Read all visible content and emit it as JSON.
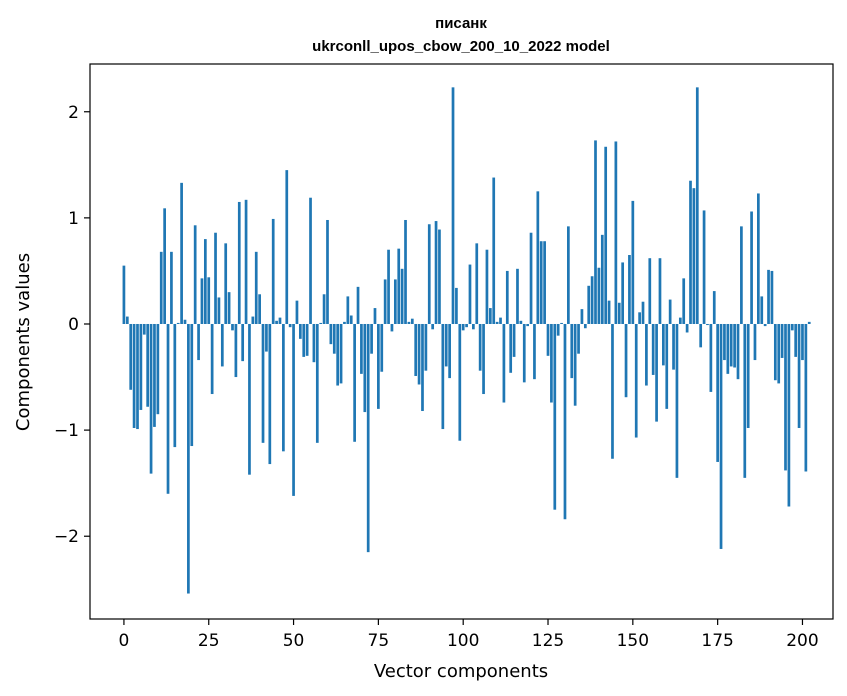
{
  "chart_data": {
    "type": "bar",
    "title_line1": "писанк",
    "title_line2": "ukrconll_upos_cbow_200_10_2022 model",
    "xlabel": "Vector components",
    "ylabel": "Components values",
    "xlim": [
      -10,
      209
    ],
    "ylim": [
      -2.78,
      2.45
    ],
    "xticks": [
      0,
      25,
      50,
      75,
      100,
      125,
      150,
      175,
      200
    ],
    "yticks": [
      -2,
      -1,
      0,
      1,
      2
    ],
    "ytick_labels": [
      "−2",
      "−1",
      "0",
      "1",
      "2"
    ],
    "bar_color": "#1f77b4",
    "grid": false,
    "values": [
      0.55,
      0.07,
      -0.62,
      -0.98,
      -0.99,
      -0.81,
      -0.1,
      -0.78,
      -1.41,
      -0.97,
      -0.85,
      0.68,
      1.09,
      -1.6,
      0.68,
      -1.16,
      0.01,
      1.33,
      0.04,
      -2.54,
      -1.15,
      0.93,
      -0.34,
      0.43,
      0.8,
      0.44,
      -0.66,
      0.86,
      0.25,
      -0.4,
      0.76,
      0.3,
      -0.06,
      -0.5,
      1.15,
      -0.35,
      1.17,
      -1.42,
      0.07,
      0.68,
      0.28,
      -1.12,
      -0.26,
      -1.32,
      0.99,
      0.03,
      0.06,
      -1.2,
      1.45,
      -0.03,
      -1.62,
      0.22,
      -0.14,
      -0.31,
      -0.3,
      1.19,
      -0.36,
      -1.12,
      0.01,
      0.28,
      0.98,
      -0.19,
      -0.28,
      -0.58,
      -0.56,
      0.02,
      0.26,
      0.08,
      -1.11,
      0.35,
      -0.47,
      -0.83,
      -2.15,
      -0.28,
      0.15,
      -0.8,
      -0.45,
      0.42,
      0.7,
      -0.07,
      0.42,
      0.71,
      0.52,
      0.98,
      0.02,
      0.05,
      -0.49,
      -0.57,
      -0.82,
      -0.44,
      0.94,
      -0.05,
      0.97,
      0.89,
      -0.99,
      -0.4,
      -0.51,
      2.23,
      0.34,
      -1.1,
      -0.06,
      -0.03,
      0.56,
      -0.05,
      0.76,
      -0.44,
      -0.66,
      0.7,
      0.15,
      1.38,
      0.02,
      0.06,
      -0.74,
      0.5,
      -0.46,
      -0.31,
      0.52,
      0.03,
      -0.55,
      -0.02,
      0.86,
      -0.52,
      1.25,
      0.78,
      0.78,
      -0.3,
      -0.74,
      -1.75,
      -0.11,
      0.01,
      -1.84,
      0.92,
      -0.51,
      -0.77,
      -0.28,
      0.14,
      -0.04,
      0.36,
      0.45,
      1.73,
      0.53,
      0.84,
      1.67,
      0.22,
      -1.27,
      1.72,
      0.2,
      0.58,
      -0.69,
      0.65,
      1.16,
      -1.07,
      0.11,
      0.21,
      -0.58,
      0.62,
      -0.48,
      -0.92,
      0.62,
      -0.39,
      -0.8,
      0.23,
      -0.43,
      -1.45,
      0.06,
      0.43,
      -0.08,
      1.35,
      1.28,
      2.23,
      -0.22,
      1.07,
      -0.01,
      -0.64,
      0.31,
      -1.3,
      -2.12,
      -0.34,
      -0.47,
      -0.4,
      -0.41,
      -0.52,
      0.92,
      -1.45,
      -0.98,
      1.06,
      -0.34,
      1.23,
      0.26,
      -0.02,
      0.51,
      0.5,
      -0.53,
      -0.56,
      -0.32,
      -1.38,
      -1.72,
      -0.06,
      -0.31,
      -0.98,
      -0.34,
      -1.39,
      0.02
    ]
  }
}
